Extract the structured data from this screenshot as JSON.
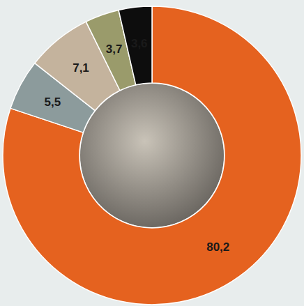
{
  "chart_data": {
    "type": "pie",
    "values": [
      80.2,
      5.5,
      7.1,
      3.7,
      3.6
    ],
    "value_labels": [
      "80,2",
      "5,5",
      "7,1",
      "3,7",
      "3,6"
    ],
    "colors": [
      "#e5621f",
      "#8c9b9c",
      "#c4b39d",
      "#9a9b6b",
      "#0d0d0d"
    ],
    "data_labels": true
  }
}
